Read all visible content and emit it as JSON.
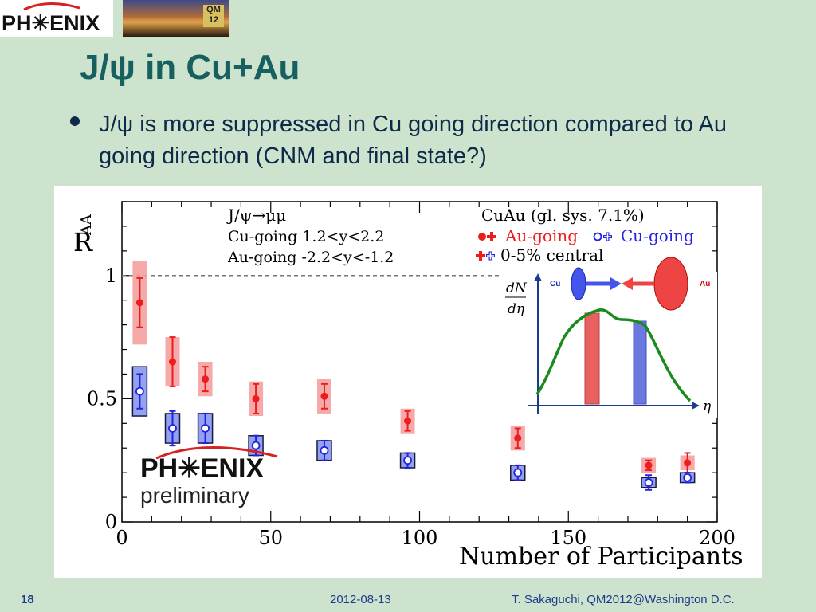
{
  "header": {
    "logo_text": "PH✳ENIX",
    "conference_badge": "QM 12"
  },
  "slide": {
    "title": "J/ψ in Cu+Au",
    "bullet": "J/ψ is more suppressed in Cu going direction compared to Au going direction (CNM and final state?)"
  },
  "chart_data": {
    "type": "scatter",
    "xlabel": "Number of Participants",
    "ylabel": "R",
    "ylabel_sub": "AA",
    "xlim": [
      0,
      200
    ],
    "ylim": [
      0,
      1.3
    ],
    "x_ticks": [
      0,
      50,
      100,
      150,
      200
    ],
    "y_ticks": [
      0,
      0.5,
      1
    ],
    "reference_line": 1,
    "annotations": {
      "process": "J/ψ→μμ",
      "cu_range": "Cu-going 1.2<y<2.2",
      "au_range": "Au-going -2.2<y<-1.2",
      "system": "CuAu (gl. sys. 7.1%)",
      "central": "0-5% central"
    },
    "series": [
      {
        "name": "Au-going",
        "color": "#ee1c1c",
        "x": [
          6,
          17,
          28,
          45,
          68,
          96,
          133,
          177,
          190
        ],
        "y": [
          0.89,
          0.65,
          0.58,
          0.5,
          0.51,
          0.41,
          0.34,
          0.23,
          0.24
        ],
        "stat_err": [
          0.1,
          0.1,
          0.05,
          0.06,
          0.05,
          0.04,
          0.04,
          0.02,
          0.04
        ],
        "sys_err": [
          0.17,
          0.1,
          0.07,
          0.07,
          0.07,
          0.05,
          0.05,
          0.03,
          0.03
        ]
      },
      {
        "name": "Cu-going",
        "color": "#2222dd",
        "x": [
          6,
          17,
          28,
          45,
          68,
          96,
          133,
          177,
          190
        ],
        "y": [
          0.53,
          0.38,
          0.38,
          0.31,
          0.29,
          0.25,
          0.2,
          0.16,
          0.18
        ],
        "stat_err": [
          0.07,
          0.07,
          0.06,
          0.04,
          0.04,
          0.03,
          0.03,
          0.03,
          0.02
        ],
        "sys_err": [
          0.1,
          0.06,
          0.06,
          0.04,
          0.04,
          0.03,
          0.03,
          0.02,
          0.02
        ]
      }
    ],
    "inset": {
      "y_label_num": "dN",
      "y_label_den": "dη",
      "x_label": "η",
      "cu_label": "Cu",
      "au_label": "Au",
      "curve_color": "#1a8a1a"
    }
  },
  "prelim": {
    "logo": "PH✳ENIX",
    "label": "preliminary"
  },
  "footer": {
    "page": "18",
    "date": "2012-08-13",
    "author": "T. Sakaguchi, QM2012@Washington D.C."
  }
}
